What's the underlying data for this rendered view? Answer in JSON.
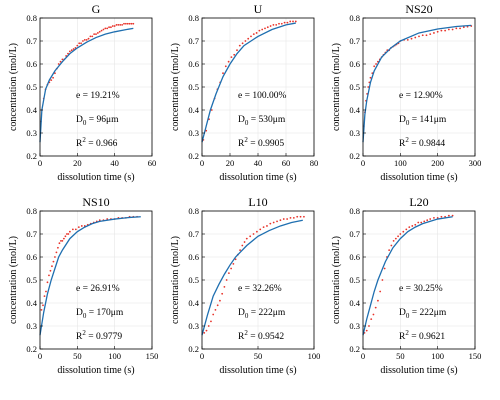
{
  "colors": {
    "fit_line": "#1f6fb0",
    "data_points": "#e8332a"
  },
  "chart_data": [
    {
      "type": "line",
      "title": "G",
      "xlabel": "dissolution time (s)",
      "ylabel": "concentration (mol/L)",
      "xlim": [
        0,
        60
      ],
      "ylim": [
        0.2,
        0.8
      ],
      "xticks": [
        0,
        20,
        40,
        60
      ],
      "yticks": [
        0.2,
        0.3,
        0.4,
        0.5,
        0.6,
        0.7,
        0.8
      ],
      "annotations": [
        "e = 19.21%",
        "D0 = 96μm",
        "R2 = 0.966"
      ],
      "fit": {
        "name": "fit",
        "x": [
          0,
          1,
          3,
          5,
          8,
          12,
          16,
          20,
          25,
          30,
          35,
          40,
          45,
          50
        ],
        "y": [
          0.26,
          0.4,
          0.49,
          0.53,
          0.57,
          0.61,
          0.645,
          0.67,
          0.695,
          0.715,
          0.73,
          0.74,
          0.748,
          0.755
        ]
      },
      "points": {
        "name": "data",
        "x": [
          0.5,
          1,
          2,
          3,
          4,
          5,
          6,
          7,
          8,
          9,
          10,
          11,
          12,
          13,
          14,
          15,
          16,
          17,
          18,
          19,
          20,
          21,
          22,
          23,
          24,
          25,
          26,
          27,
          28,
          29,
          30,
          31,
          32,
          33,
          34,
          35,
          36,
          37,
          38,
          39,
          40,
          41,
          42,
          43,
          44,
          45,
          46,
          47,
          48,
          49,
          50
        ],
        "y": [
          0.35,
          0.4,
          0.45,
          0.49,
          0.51,
          0.52,
          0.53,
          0.54,
          0.56,
          0.58,
          0.6,
          0.61,
          0.62,
          0.62,
          0.635,
          0.645,
          0.655,
          0.66,
          0.665,
          0.67,
          0.68,
          0.69,
          0.69,
          0.7,
          0.705,
          0.705,
          0.71,
          0.72,
          0.72,
          0.73,
          0.73,
          0.735,
          0.74,
          0.745,
          0.75,
          0.755,
          0.755,
          0.76,
          0.76,
          0.765,
          0.765,
          0.77,
          0.77,
          0.77,
          0.77,
          0.775,
          0.775,
          0.775,
          0.775,
          0.775,
          0.775
        ]
      }
    },
    {
      "type": "line",
      "title": "U",
      "xlabel": "dissolution time (s)",
      "ylabel": "concentration (mol/L)",
      "xlim": [
        0,
        80
      ],
      "ylim": [
        0.2,
        0.8
      ],
      "xticks": [
        0,
        20,
        40,
        60,
        80
      ],
      "yticks": [
        0.2,
        0.3,
        0.4,
        0.5,
        0.6,
        0.7,
        0.8
      ],
      "annotations": [
        "e = 100.00%",
        "D0 = 530μm",
        "R2 = 0.9905"
      ],
      "fit": {
        "name": "fit",
        "x": [
          0,
          3,
          6,
          10,
          15,
          20,
          25,
          30,
          35,
          40,
          50,
          60,
          67
        ],
        "y": [
          0.26,
          0.33,
          0.4,
          0.47,
          0.545,
          0.6,
          0.645,
          0.68,
          0.7,
          0.72,
          0.75,
          0.77,
          0.778
        ]
      },
      "points": {
        "name": "data",
        "x": [
          1,
          3,
          5,
          7,
          9,
          11,
          13,
          15,
          17,
          19,
          21,
          23,
          25,
          27,
          29,
          31,
          33,
          35,
          37,
          39,
          41,
          43,
          45,
          47,
          49,
          51,
          53,
          55,
          57,
          59,
          61,
          63,
          65,
          67
        ],
        "y": [
          0.27,
          0.31,
          0.36,
          0.4,
          0.45,
          0.49,
          0.52,
          0.56,
          0.59,
          0.61,
          0.63,
          0.64,
          0.66,
          0.68,
          0.69,
          0.7,
          0.71,
          0.72,
          0.73,
          0.735,
          0.745,
          0.75,
          0.755,
          0.76,
          0.765,
          0.77,
          0.77,
          0.775,
          0.775,
          0.78,
          0.78,
          0.785,
          0.785,
          0.785
        ]
      }
    },
    {
      "type": "line",
      "title": "NS20",
      "xlabel": "dissolution time (s)",
      "ylabel": "concentration (mol/L)",
      "xlim": [
        0,
        300
      ],
      "ylim": [
        0.2,
        0.8
      ],
      "xticks": [
        0,
        100,
        200,
        300
      ],
      "yticks": [
        0.2,
        0.3,
        0.4,
        0.5,
        0.6,
        0.7,
        0.8
      ],
      "annotations": [
        "e = 12.90%",
        "D0 = 141μm",
        "R2 = 0.9844"
      ],
      "fit": {
        "name": "fit",
        "x": [
          0,
          5,
          10,
          20,
          30,
          50,
          75,
          100,
          150,
          200,
          250,
          290
        ],
        "y": [
          0.26,
          0.38,
          0.44,
          0.52,
          0.57,
          0.63,
          0.67,
          0.7,
          0.735,
          0.752,
          0.763,
          0.768
        ]
      },
      "points": {
        "name": "data",
        "x": [
          2,
          5,
          8,
          11,
          14,
          17,
          20,
          25,
          30,
          35,
          40,
          45,
          50,
          55,
          60,
          65,
          70,
          75,
          80,
          85,
          90,
          95,
          100,
          110,
          120,
          130,
          140,
          150,
          160,
          170,
          180,
          190,
          200,
          210,
          220,
          230,
          240,
          250,
          260,
          270,
          280,
          290
        ],
        "y": [
          0.33,
          0.39,
          0.44,
          0.47,
          0.5,
          0.52,
          0.54,
          0.56,
          0.59,
          0.6,
          0.61,
          0.62,
          0.63,
          0.64,
          0.65,
          0.66,
          0.66,
          0.67,
          0.675,
          0.68,
          0.685,
          0.69,
          0.7,
          0.705,
          0.705,
          0.71,
          0.715,
          0.72,
          0.725,
          0.725,
          0.73,
          0.735,
          0.74,
          0.745,
          0.745,
          0.75,
          0.75,
          0.755,
          0.755,
          0.76,
          0.762,
          0.765
        ]
      }
    },
    {
      "type": "line",
      "title": "NS10",
      "xlabel": "dissolution time (s)",
      "ylabel": "concentration (mol/L)",
      "xlim": [
        0,
        150
      ],
      "ylim": [
        0.2,
        0.8
      ],
      "xticks": [
        0,
        50,
        100,
        150
      ],
      "yticks": [
        0.2,
        0.3,
        0.4,
        0.5,
        0.6,
        0.7,
        0.8
      ],
      "annotations": [
        "e = 26.91%",
        "D0 = 170μm",
        "R2 = 0.9779"
      ],
      "fit": {
        "name": "fit",
        "x": [
          0,
          5,
          10,
          15,
          20,
          25,
          30,
          40,
          50,
          60,
          70,
          80,
          100,
          120,
          135
        ],
        "y": [
          0.26,
          0.36,
          0.44,
          0.5,
          0.55,
          0.6,
          0.63,
          0.68,
          0.71,
          0.73,
          0.745,
          0.755,
          0.765,
          0.772,
          0.775
        ]
      },
      "points": {
        "name": "data",
        "x": [
          2,
          4,
          6,
          8,
          10,
          12,
          14,
          16,
          18,
          20,
          22,
          24,
          26,
          28,
          30,
          32,
          34,
          36,
          38,
          40,
          44,
          48,
          52,
          56,
          60,
          64,
          68,
          72,
          76,
          80,
          85,
          90,
          95,
          100,
          105,
          110,
          115,
          120,
          125,
          130
        ],
        "y": [
          0.37,
          0.39,
          0.43,
          0.45,
          0.49,
          0.52,
          0.54,
          0.56,
          0.58,
          0.6,
          0.62,
          0.64,
          0.66,
          0.67,
          0.67,
          0.68,
          0.69,
          0.7,
          0.7,
          0.71,
          0.72,
          0.72,
          0.73,
          0.735,
          0.735,
          0.74,
          0.745,
          0.75,
          0.755,
          0.76,
          0.76,
          0.765,
          0.765,
          0.765,
          0.77,
          0.77,
          0.77,
          0.775,
          0.775,
          0.775
        ]
      }
    },
    {
      "type": "line",
      "title": "L10",
      "xlabel": "dissolution time (s)",
      "ylabel": "concentration (mol/L)",
      "xlim": [
        0,
        100
      ],
      "ylim": [
        0.2,
        0.8
      ],
      "xticks": [
        0,
        50,
        100
      ],
      "yticks": [
        0.2,
        0.3,
        0.4,
        0.5,
        0.6,
        0.7,
        0.8
      ],
      "annotations": [
        "e = 32.26%",
        "D0 = 222μm",
        "R2 = 0.9542"
      ],
      "fit": {
        "name": "fit",
        "x": [
          0,
          5,
          10,
          15,
          20,
          25,
          30,
          40,
          50,
          60,
          70,
          80,
          90
        ],
        "y": [
          0.26,
          0.35,
          0.43,
          0.48,
          0.525,
          0.565,
          0.6,
          0.65,
          0.69,
          0.715,
          0.735,
          0.75,
          0.76
        ]
      },
      "points": {
        "name": "data",
        "x": [
          2,
          4,
          6,
          8,
          10,
          12,
          14,
          16,
          18,
          20,
          22,
          24,
          26,
          28,
          30,
          32,
          34,
          36,
          38,
          40,
          43,
          46,
          49,
          52,
          55,
          58,
          61,
          64,
          67,
          70,
          73,
          76,
          79,
          82,
          85,
          88,
          91
        ],
        "y": [
          0.27,
          0.28,
          0.3,
          0.32,
          0.35,
          0.37,
          0.39,
          0.41,
          0.44,
          0.47,
          0.5,
          0.53,
          0.55,
          0.57,
          0.59,
          0.61,
          0.63,
          0.65,
          0.665,
          0.68,
          0.69,
          0.7,
          0.71,
          0.72,
          0.73,
          0.735,
          0.745,
          0.75,
          0.755,
          0.76,
          0.765,
          0.765,
          0.77,
          0.77,
          0.775,
          0.775,
          0.775
        ]
      }
    },
    {
      "type": "line",
      "title": "L20",
      "xlabel": "dissolution time (s)",
      "ylabel": "concentration (mol/L)",
      "xlim": [
        0,
        150
      ],
      "ylim": [
        0.2,
        0.8
      ],
      "xticks": [
        0,
        50,
        100,
        150
      ],
      "yticks": [
        0.2,
        0.3,
        0.4,
        0.5,
        0.6,
        0.7,
        0.8
      ],
      "annotations": [
        "e = 30.25%",
        "D0 = 222μm",
        "R2 = 0.9621"
      ],
      "fit": {
        "name": "fit",
        "x": [
          0,
          5,
          10,
          15,
          20,
          25,
          30,
          40,
          50,
          60,
          70,
          80,
          100,
          120
        ],
        "y": [
          0.26,
          0.33,
          0.39,
          0.45,
          0.5,
          0.54,
          0.58,
          0.64,
          0.68,
          0.71,
          0.73,
          0.745,
          0.765,
          0.775
        ]
      },
      "points": {
        "name": "data",
        "x": [
          2,
          5,
          8,
          11,
          14,
          17,
          20,
          23,
          26,
          29,
          32,
          35,
          38,
          41,
          44,
          47,
          50,
          54,
          58,
          62,
          66,
          70,
          74,
          78,
          82,
          86,
          90,
          95,
          100,
          105,
          110,
          115,
          120
        ],
        "y": [
          0.27,
          0.28,
          0.3,
          0.33,
          0.35,
          0.38,
          0.41,
          0.45,
          0.5,
          0.55,
          0.6,
          0.63,
          0.65,
          0.67,
          0.68,
          0.69,
          0.7,
          0.71,
          0.72,
          0.73,
          0.735,
          0.74,
          0.75,
          0.75,
          0.755,
          0.76,
          0.765,
          0.77,
          0.77,
          0.775,
          0.775,
          0.78,
          0.78
        ]
      }
    }
  ]
}
